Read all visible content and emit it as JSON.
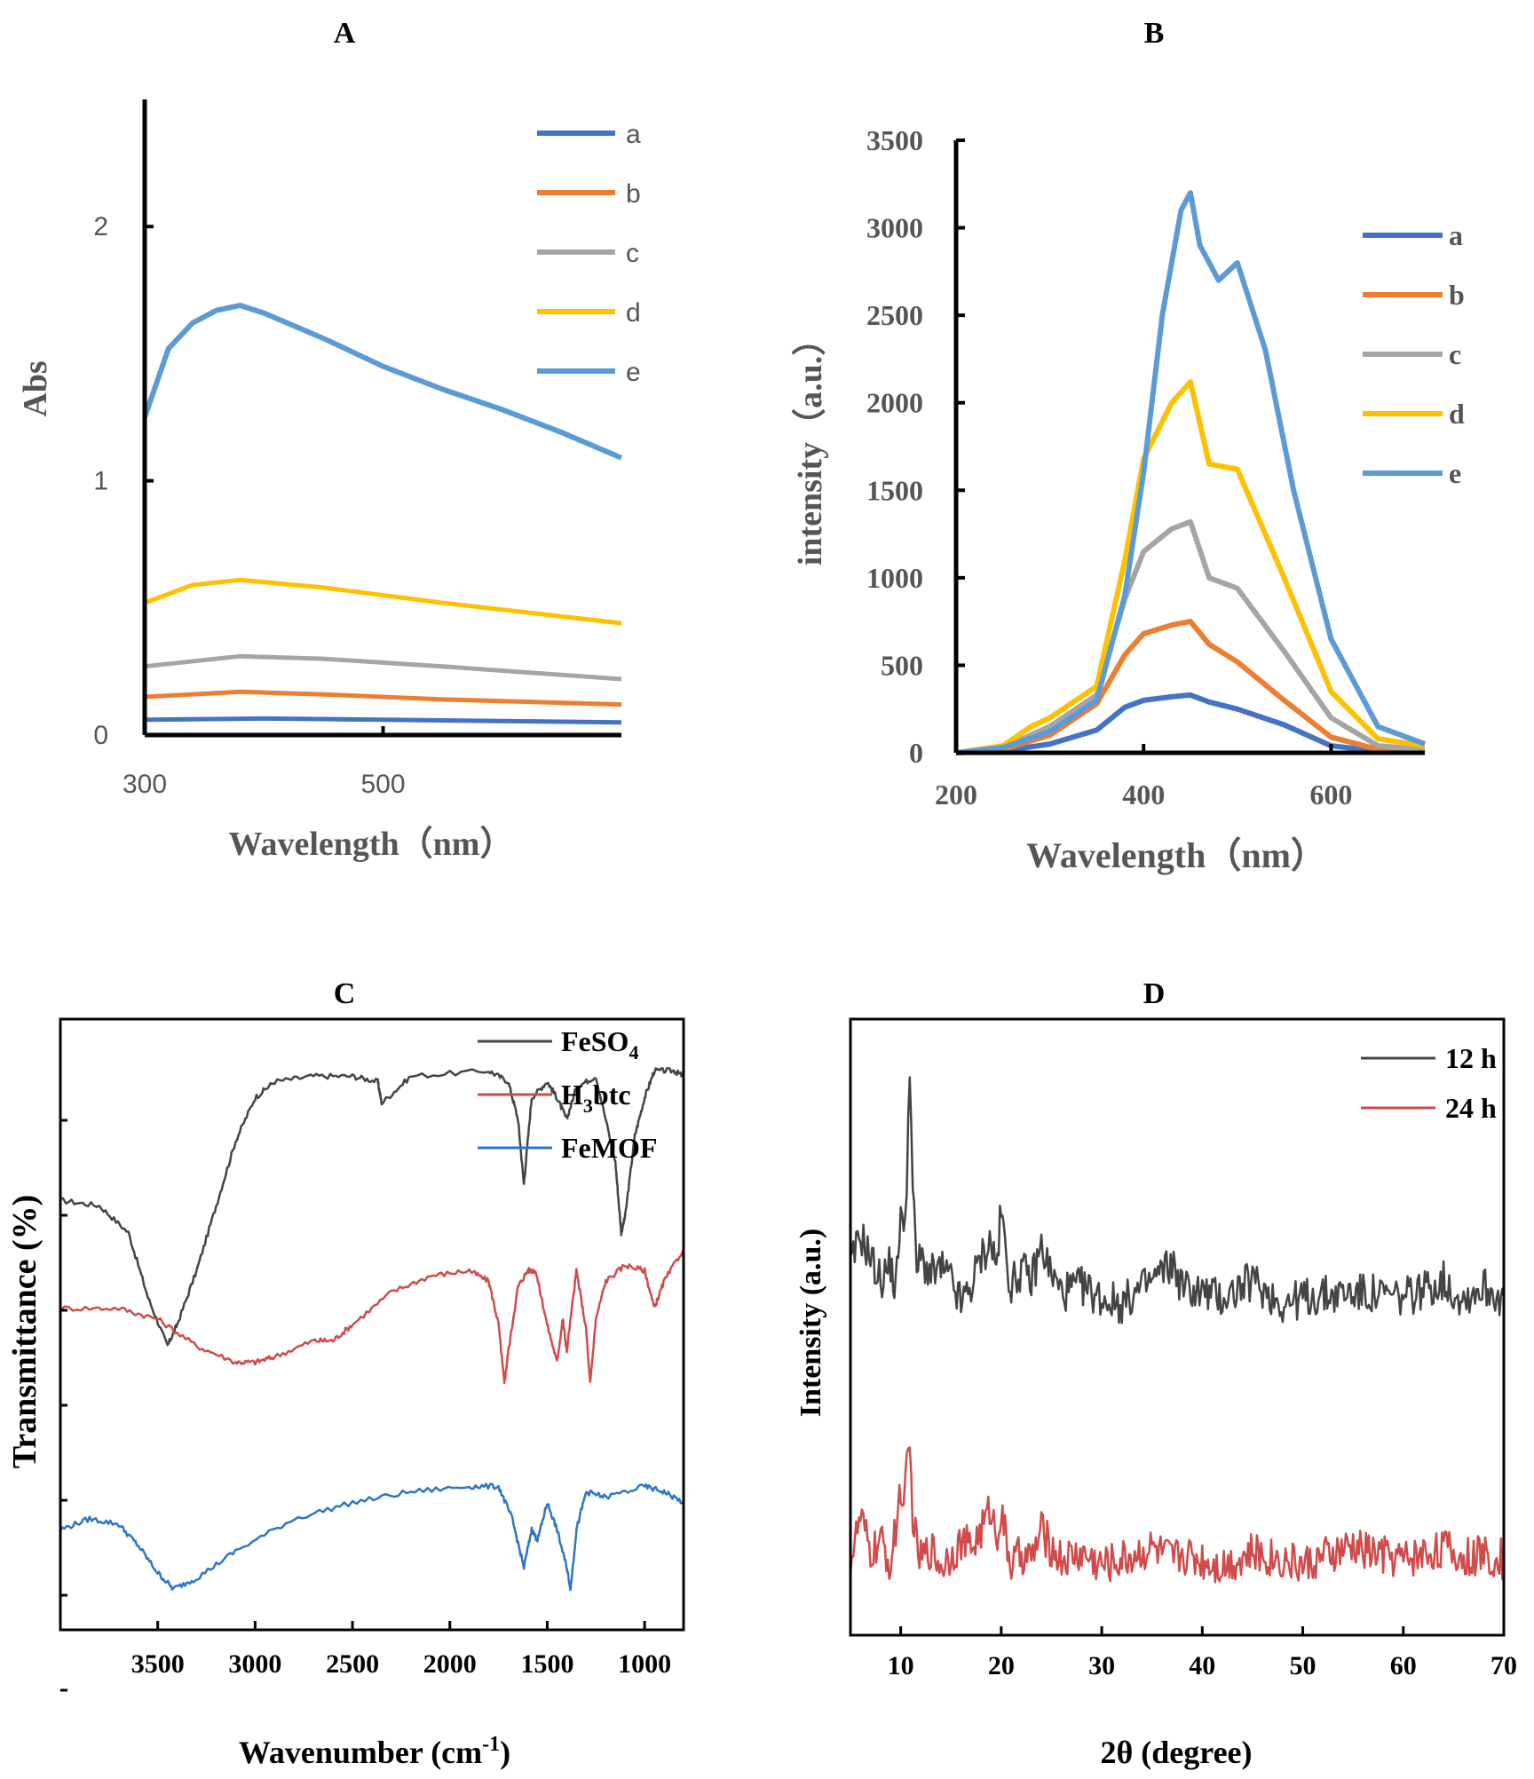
{
  "chart_data": [
    {
      "id": "A",
      "type": "line",
      "panel_label": "A",
      "title": "",
      "xlabel": "Wavelength（nm）",
      "ylabel": "Abs",
      "xlim": [
        300,
        700
      ],
      "ylim": [
        0,
        2.5
      ],
      "xticks": [
        "300",
        "500"
      ],
      "xtick_values": [
        300,
        500
      ],
      "yticks": [
        "0",
        "1",
        "2"
      ],
      "ytick_values": [
        0,
        1,
        2
      ],
      "legend_position": "top-right",
      "series": [
        {
          "name": "a",
          "color": "#4472C4",
          "x": [
            300,
            400,
            500,
            600,
            700
          ],
          "y": [
            0.06,
            0.065,
            0.06,
            0.055,
            0.05
          ]
        },
        {
          "name": "b",
          "color": "#ED7D31",
          "x": [
            300,
            380,
            450,
            550,
            700
          ],
          "y": [
            0.15,
            0.17,
            0.16,
            0.14,
            0.12
          ]
        },
        {
          "name": "c",
          "color": "#A5A5A5",
          "x": [
            300,
            380,
            450,
            550,
            700
          ],
          "y": [
            0.27,
            0.31,
            0.3,
            0.27,
            0.22
          ]
        },
        {
          "name": "d",
          "color": "#FFC000",
          "x": [
            300,
            340,
            380,
            450,
            550,
            700
          ],
          "y": [
            0.52,
            0.59,
            0.61,
            0.58,
            0.52,
            0.44
          ]
        },
        {
          "name": "e",
          "color": "#5B9BD5",
          "x": [
            300,
            320,
            340,
            360,
            380,
            400,
            450,
            500,
            550,
            600,
            650,
            700
          ],
          "y": [
            1.25,
            1.52,
            1.62,
            1.67,
            1.69,
            1.66,
            1.56,
            1.45,
            1.36,
            1.28,
            1.19,
            1.09
          ]
        }
      ]
    },
    {
      "id": "B",
      "type": "line",
      "panel_label": "B",
      "title": "",
      "xlabel": "Wavelength（nm）",
      "ylabel": "intensity（a.u.）",
      "xlim": [
        200,
        700
      ],
      "ylim": [
        0,
        3500
      ],
      "xticks": [
        "200",
        "400",
        "600"
      ],
      "xtick_values": [
        200,
        400,
        600
      ],
      "yticks": [
        "0",
        "500",
        "1000",
        "1500",
        "2000",
        "2500",
        "3000",
        "3500"
      ],
      "ytick_values": [
        0,
        500,
        1000,
        1500,
        2000,
        2500,
        3000,
        3500
      ],
      "legend_position": "right",
      "series": [
        {
          "name": "a",
          "color": "#4472C4",
          "x": [
            200,
            250,
            300,
            350,
            380,
            400,
            430,
            450,
            470,
            500,
            550,
            600,
            650,
            700
          ],
          "y": [
            0,
            10,
            50,
            130,
            260,
            300,
            320,
            330,
            290,
            250,
            160,
            40,
            10,
            5
          ]
        },
        {
          "name": "b",
          "color": "#ED7D31",
          "x": [
            200,
            250,
            300,
            350,
            380,
            400,
            430,
            450,
            470,
            500,
            550,
            600,
            650,
            700
          ],
          "y": [
            0,
            20,
            100,
            280,
            560,
            680,
            730,
            750,
            620,
            520,
            300,
            90,
            20,
            10
          ]
        },
        {
          "name": "c",
          "color": "#A5A5A5",
          "x": [
            200,
            250,
            300,
            350,
            380,
            400,
            430,
            450,
            470,
            500,
            550,
            600,
            650,
            700
          ],
          "y": [
            0,
            30,
            150,
            330,
            880,
            1150,
            1280,
            1320,
            1000,
            940,
            580,
            200,
            40,
            20
          ]
        },
        {
          "name": "d",
          "color": "#FFC000",
          "x": [
            200,
            250,
            280,
            300,
            350,
            380,
            400,
            430,
            450,
            470,
            500,
            550,
            600,
            650,
            700
          ],
          "y": [
            0,
            40,
            150,
            200,
            380,
            1100,
            1680,
            2000,
            2120,
            1650,
            1620,
            1000,
            350,
            80,
            40
          ]
        },
        {
          "name": "e",
          "color": "#5B9BD5",
          "x": [
            200,
            250,
            300,
            350,
            380,
            400,
            420,
            440,
            450,
            460,
            480,
            500,
            530,
            560,
            600,
            650,
            700
          ],
          "y": [
            0,
            30,
            120,
            300,
            900,
            1600,
            2500,
            3100,
            3200,
            2900,
            2700,
            2800,
            2300,
            1500,
            650,
            150,
            50
          ]
        }
      ]
    },
    {
      "id": "C",
      "type": "line",
      "panel_label": "C",
      "title": "",
      "xlabel": "Wavenumber (cm",
      "xlabel_sup": "-1",
      "xlabel_end": ")",
      "ylabel": "Transmittance (%)",
      "xlim": [
        4000,
        800
      ],
      "ylim": [
        0,
        100
      ],
      "xticks": [
        "3500",
        "3000",
        "2500",
        "2000",
        "1500",
        "1000"
      ],
      "xtick_values": [
        3500,
        3000,
        2500,
        2000,
        1500,
        1000
      ],
      "legend_position": "top-right",
      "legend": [
        {
          "text": "FeSO",
          "sub": "4",
          "text_end": "",
          "color": "#444444"
        },
        {
          "text": "H",
          "sub": "3",
          "text_end": "btc",
          "color": "#D14B4B"
        },
        {
          "text": "FeMOF",
          "sub": "",
          "text_end": "",
          "color": "#2E75C4"
        }
      ],
      "series": [
        {
          "name": "FeSO4",
          "color": "#444444",
          "x": [
            4000,
            3800,
            3650,
            3550,
            3450,
            3400,
            3300,
            3200,
            3100,
            3000,
            2900,
            2700,
            2500,
            2370,
            2350,
            2200,
            1800,
            1700,
            1650,
            1620,
            1580,
            1500,
            1450,
            1400,
            1350,
            1250,
            1150,
            1120,
            1100,
            1050,
            1000,
            950,
            850,
            800
          ],
          "y": [
            73,
            72,
            67,
            55,
            46,
            50,
            60,
            72,
            84,
            92,
            95,
            96,
            96,
            95,
            91,
            96,
            97,
            95,
            88,
            76,
            92,
            95,
            92,
            88,
            94,
            96,
            80,
            67,
            70,
            85,
            92,
            97,
            97,
            96
          ]
        },
        {
          "name": "H3btc",
          "color": "#D14B4B",
          "x": [
            4000,
            3700,
            3500,
            3300,
            3100,
            3000,
            2900,
            2700,
            2600,
            2500,
            2300,
            2100,
            1900,
            1800,
            1750,
            1720,
            1700,
            1650,
            1600,
            1560,
            1500,
            1450,
            1420,
            1400,
            1350,
            1300,
            1280,
            1250,
            1200,
            1100,
            1000,
            950,
            900,
            800
          ],
          "y": [
            53,
            53,
            51,
            46,
            43,
            43,
            44,
            47,
            47,
            50,
            56,
            59,
            60,
            58,
            50,
            39,
            45,
            57,
            60,
            60,
            50,
            43,
            51,
            45,
            60,
            49,
            39,
            51,
            58,
            61,
            60,
            53,
            58,
            64
          ]
        },
        {
          "name": "FeMOF",
          "color": "#2E75C4",
          "x": [
            4000,
            3850,
            3700,
            3600,
            3500,
            3420,
            3300,
            3100,
            2800,
            2500,
            2200,
            1900,
            1750,
            1680,
            1620,
            1580,
            1550,
            1500,
            1450,
            1400,
            1380,
            1350,
            1300,
            1200,
            1000,
            900,
            800
          ],
          "y": [
            12,
            14,
            13,
            9,
            4,
            1,
            3,
            8,
            14,
            17,
            19,
            20,
            20,
            14,
            5,
            12,
            10,
            17,
            12,
            5,
            1,
            12,
            19,
            18,
            20,
            19,
            17
          ]
        }
      ]
    },
    {
      "id": "D",
      "type": "line",
      "panel_label": "D",
      "title": "",
      "xlabel": "2θ (degree)",
      "ylabel": "Intensity (a.u.)",
      "xlim": [
        5,
        70
      ],
      "ylim": [
        0,
        100
      ],
      "xticks": [
        "10",
        "20",
        "30",
        "40",
        "50",
        "60",
        "70"
      ],
      "xtick_values": [
        10,
        20,
        30,
        40,
        50,
        60,
        70
      ],
      "legend_position": "top-right",
      "legend": [
        {
          "text": "12 h",
          "color": "#444444"
        },
        {
          "text": "24 h",
          "color": "#D14B4B"
        }
      ],
      "series": [
        {
          "name": "12 h",
          "color": "#444444",
          "x": [
            5,
            6,
            7,
            8,
            9,
            9.5,
            10,
            10.3,
            10.6,
            10.9,
            11.2,
            11.6,
            12,
            13,
            14,
            15,
            16,
            17,
            18,
            19,
            19.5,
            20,
            20.5,
            21,
            22,
            23,
            24,
            25,
            26,
            28,
            30,
            32,
            35,
            37,
            38,
            40,
            42,
            45,
            48,
            50,
            55,
            60,
            64,
            65,
            66,
            68,
            70
          ],
          "y": [
            60,
            66,
            62,
            58,
            61,
            56,
            71,
            64,
            76,
            96,
            73,
            60,
            62,
            59,
            60,
            58,
            54,
            57,
            62,
            65,
            60,
            70,
            62,
            57,
            60,
            58,
            64,
            59,
            56,
            57,
            55,
            54,
            58,
            61,
            57,
            56,
            55,
            58,
            54,
            55,
            56,
            55,
            58,
            56,
            55,
            57,
            55
          ]
        },
        {
          "name": "24 h",
          "color": "#D14B4B",
          "x": [
            5,
            6,
            7,
            8,
            9,
            9.5,
            10,
            10.3,
            10.6,
            10.9,
            11.2,
            11.6,
            12,
            13,
            14,
            15,
            16,
            17,
            18,
            19,
            19.5,
            20,
            20.5,
            21,
            22,
            23,
            24,
            25,
            26,
            28,
            30,
            32,
            35,
            37,
            38,
            40,
            42,
            45,
            48,
            50,
            55,
            60,
            64,
            65,
            66,
            68,
            70
          ],
          "y": [
            10,
            17,
            11,
            13,
            9,
            15,
            23,
            17,
            25,
            29,
            18,
            12,
            10,
            12,
            9,
            11,
            13,
            12,
            15,
            19,
            14,
            18,
            13,
            9,
            11,
            10,
            15,
            12,
            10,
            11,
            9,
            10,
            12,
            10,
            11,
            10,
            9,
            11,
            10,
            9,
            12,
            10,
            12,
            11,
            10,
            11,
            10
          ]
        }
      ]
    }
  ]
}
